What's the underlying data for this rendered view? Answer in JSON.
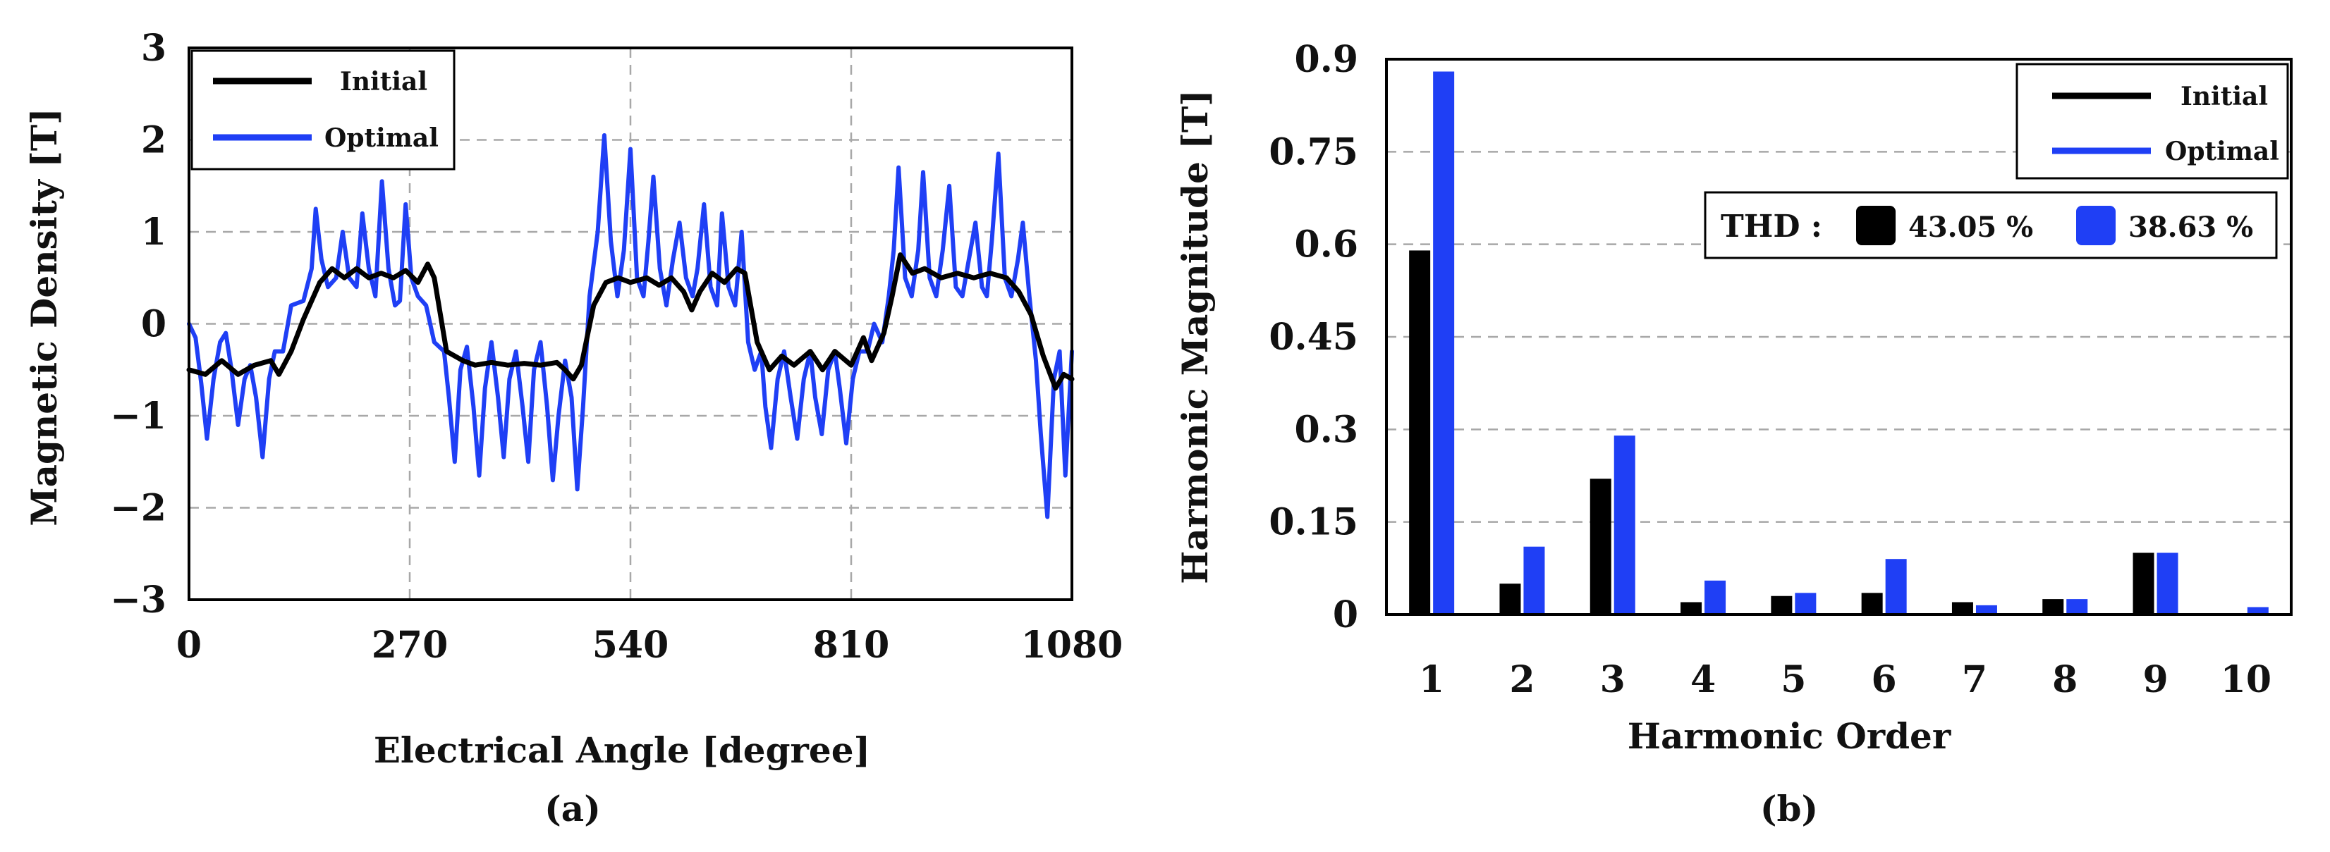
{
  "chart_data": [
    {
      "type": "line",
      "panel_label": "(a)",
      "xlabel": "Electrical Angle [degree]",
      "ylabel": "Magnetic Density [T]",
      "xlim": [
        0,
        1080
      ],
      "ylim": [
        -3,
        3
      ],
      "xticks": [
        "0",
        "270",
        "540",
        "810",
        "1080"
      ],
      "yticks": [
        "3",
        "2",
        "1",
        "0",
        "−1",
        "−2",
        "−3"
      ],
      "grid": true,
      "legend_position": "top-left",
      "series": [
        {
          "name": "Initial",
          "color": "#000000",
          "points": [
            [
              0,
              -0.5
            ],
            [
              20,
              -0.55
            ],
            [
              40,
              -0.4
            ],
            [
              60,
              -0.55
            ],
            [
              80,
              -0.45
            ],
            [
              100,
              -0.4
            ],
            [
              110,
              -0.55
            ],
            [
              125,
              -0.3
            ],
            [
              140,
              0.05
            ],
            [
              160,
              0.45
            ],
            [
              175,
              0.6
            ],
            [
              190,
              0.5
            ],
            [
              205,
              0.6
            ],
            [
              220,
              0.5
            ],
            [
              235,
              0.55
            ],
            [
              250,
              0.5
            ],
            [
              265,
              0.58
            ],
            [
              280,
              0.45
            ],
            [
              292,
              0.65
            ],
            [
              300,
              0.5
            ],
            [
              315,
              -0.3
            ],
            [
              335,
              -0.4
            ],
            [
              350,
              -0.45
            ],
            [
              370,
              -0.42
            ],
            [
              390,
              -0.45
            ],
            [
              410,
              -0.43
            ],
            [
              430,
              -0.45
            ],
            [
              450,
              -0.42
            ],
            [
              460,
              -0.5
            ],
            [
              470,
              -0.6
            ],
            [
              480,
              -0.45
            ],
            [
              495,
              0.2
            ],
            [
              510,
              0.45
            ],
            [
              525,
              0.5
            ],
            [
              540,
              0.45
            ],
            [
              560,
              0.5
            ],
            [
              575,
              0.42
            ],
            [
              590,
              0.5
            ],
            [
              605,
              0.35
            ],
            [
              615,
              0.15
            ],
            [
              625,
              0.35
            ],
            [
              640,
              0.55
            ],
            [
              655,
              0.45
            ],
            [
              670,
              0.6
            ],
            [
              680,
              0.55
            ],
            [
              695,
              -0.2
            ],
            [
              710,
              -0.5
            ],
            [
              725,
              -0.35
            ],
            [
              740,
              -0.45
            ],
            [
              760,
              -0.3
            ],
            [
              775,
              -0.5
            ],
            [
              790,
              -0.3
            ],
            [
              810,
              -0.45
            ],
            [
              825,
              -0.15
            ],
            [
              835,
              -0.4
            ],
            [
              850,
              -0.1
            ],
            [
              860,
              0.3
            ],
            [
              870,
              0.75
            ],
            [
              885,
              0.55
            ],
            [
              900,
              0.6
            ],
            [
              920,
              0.5
            ],
            [
              940,
              0.55
            ],
            [
              960,
              0.5
            ],
            [
              980,
              0.55
            ],
            [
              1000,
              0.5
            ],
            [
              1015,
              0.35
            ],
            [
              1030,
              0.1
            ],
            [
              1045,
              -0.35
            ],
            [
              1060,
              -0.7
            ],
            [
              1070,
              -0.55
            ],
            [
              1080,
              -0.6
            ]
          ]
        },
        {
          "name": "Optimal",
          "color": "#1f3ff5",
          "points": [
            [
              0,
              0
            ],
            [
              8,
              -0.15
            ],
            [
              15,
              -0.65
            ],
            [
              22,
              -1.25
            ],
            [
              30,
              -0.6
            ],
            [
              38,
              -0.2
            ],
            [
              45,
              -0.1
            ],
            [
              52,
              -0.5
            ],
            [
              60,
              -1.1
            ],
            [
              68,
              -0.6
            ],
            [
              75,
              -0.45
            ],
            [
              82,
              -0.8
            ],
            [
              90,
              -1.45
            ],
            [
              98,
              -0.6
            ],
            [
              105,
              -0.3
            ],
            [
              115,
              -0.3
            ],
            [
              125,
              0.2
            ],
            [
              140,
              0.25
            ],
            [
              150,
              0.6
            ],
            [
              155,
              1.25
            ],
            [
              162,
              0.7
            ],
            [
              170,
              0.4
            ],
            [
              180,
              0.5
            ],
            [
              188,
              1.0
            ],
            [
              196,
              0.5
            ],
            [
              205,
              0.4
            ],
            [
              212,
              1.2
            ],
            [
              220,
              0.6
            ],
            [
              228,
              0.3
            ],
            [
              236,
              1.55
            ],
            [
              244,
              0.6
            ],
            [
              252,
              0.2
            ],
            [
              258,
              0.25
            ],
            [
              265,
              1.3
            ],
            [
              272,
              0.5
            ],
            [
              280,
              0.3
            ],
            [
              290,
              0.2
            ],
            [
              300,
              -0.2
            ],
            [
              312,
              -0.3
            ],
            [
              318,
              -0.8
            ],
            [
              325,
              -1.5
            ],
            [
              332,
              -0.5
            ],
            [
              340,
              -0.25
            ],
            [
              348,
              -0.9
            ],
            [
              355,
              -1.65
            ],
            [
              362,
              -0.7
            ],
            [
              370,
              -0.2
            ],
            [
              378,
              -0.8
            ],
            [
              385,
              -1.45
            ],
            [
              392,
              -0.6
            ],
            [
              400,
              -0.3
            ],
            [
              408,
              -0.9
            ],
            [
              415,
              -1.5
            ],
            [
              422,
              -0.5
            ],
            [
              430,
              -0.2
            ],
            [
              438,
              -0.9
            ],
            [
              445,
              -1.7
            ],
            [
              452,
              -1.0
            ],
            [
              460,
              -0.4
            ],
            [
              468,
              -0.8
            ],
            [
              475,
              -1.8
            ],
            [
              482,
              -0.9
            ],
            [
              490,
              0.3
            ],
            [
              500,
              1.0
            ],
            [
              508,
              2.05
            ],
            [
              516,
              0.9
            ],
            [
              524,
              0.3
            ],
            [
              532,
              0.8
            ],
            [
              540,
              1.9
            ],
            [
              548,
              0.5
            ],
            [
              556,
              0.3
            ],
            [
              562,
              0.9
            ],
            [
              568,
              1.6
            ],
            [
              576,
              0.6
            ],
            [
              584,
              0.2
            ],
            [
              592,
              0.7
            ],
            [
              600,
              1.1
            ],
            [
              608,
              0.5
            ],
            [
              616,
              0.3
            ],
            [
              622,
              0.6
            ],
            [
              630,
              1.3
            ],
            [
              638,
              0.4
            ],
            [
              646,
              0.2
            ],
            [
              652,
              1.2
            ],
            [
              660,
              0.4
            ],
            [
              668,
              0.2
            ],
            [
              676,
              1.0
            ],
            [
              684,
              -0.2
            ],
            [
              692,
              -0.5
            ],
            [
              700,
              -0.3
            ],
            [
              705,
              -0.9
            ],
            [
              712,
              -1.35
            ],
            [
              720,
              -0.6
            ],
            [
              728,
              -0.3
            ],
            [
              736,
              -0.8
            ],
            [
              744,
              -1.25
            ],
            [
              752,
              -0.6
            ],
            [
              760,
              -0.3
            ],
            [
              766,
              -0.8
            ],
            [
              774,
              -1.2
            ],
            [
              782,
              -0.5
            ],
            [
              790,
              -0.3
            ],
            [
              796,
              -0.7
            ],
            [
              804,
              -1.3
            ],
            [
              812,
              -0.6
            ],
            [
              820,
              -0.3
            ],
            [
              830,
              -0.3
            ],
            [
              838,
              0.0
            ],
            [
              848,
              -0.2
            ],
            [
              856,
              0.3
            ],
            [
              862,
              0.8
            ],
            [
              868,
              1.7
            ],
            [
              876,
              0.5
            ],
            [
              884,
              0.3
            ],
            [
              892,
              0.8
            ],
            [
              898,
              1.65
            ],
            [
              906,
              0.5
            ],
            [
              914,
              0.3
            ],
            [
              922,
              0.8
            ],
            [
              930,
              1.5
            ],
            [
              938,
              0.4
            ],
            [
              946,
              0.3
            ],
            [
              954,
              0.7
            ],
            [
              962,
              1.1
            ],
            [
              970,
              0.4
            ],
            [
              976,
              0.3
            ],
            [
              982,
              0.9
            ],
            [
              990,
              1.85
            ],
            [
              998,
              0.5
            ],
            [
              1006,
              0.3
            ],
            [
              1014,
              0.7
            ],
            [
              1020,
              1.1
            ],
            [
              1028,
              0.3
            ],
            [
              1036,
              -0.4
            ],
            [
              1042,
              -1.2
            ],
            [
              1050,
              -2.1
            ],
            [
              1058,
              -0.6
            ],
            [
              1065,
              -0.3
            ],
            [
              1072,
              -1.65
            ],
            [
              1080,
              -0.3
            ]
          ]
        }
      ]
    },
    {
      "type": "bar",
      "panel_label": "(b)",
      "xlabel": "Harmonic Order",
      "ylabel": "Harmonic Magnitude [T]",
      "categories": [
        "1",
        "2",
        "3",
        "4",
        "5",
        "6",
        "7",
        "8",
        "9",
        "10"
      ],
      "ylim": [
        0,
        0.9
      ],
      "yticks": [
        "0.9",
        "0.75",
        "0.6",
        "0.45",
        "0.3",
        "0.15",
        "0"
      ],
      "grid": true,
      "legend_position": "top-right",
      "series": [
        {
          "name": "Initial",
          "color": "#000000",
          "values": [
            0.59,
            0.05,
            0.22,
            0.02,
            0.03,
            0.035,
            0.02,
            0.025,
            0.1,
            0.0
          ]
        },
        {
          "name": "Optimal",
          "color": "#1f3ff5",
          "values": [
            0.88,
            0.11,
            0.29,
            0.055,
            0.035,
            0.09,
            0.015,
            0.025,
            0.1,
            0.012
          ]
        }
      ],
      "annotation": {
        "label": "THD :",
        "initial_value": "43.05 %",
        "optimal_value": "38.63 %"
      }
    }
  ]
}
